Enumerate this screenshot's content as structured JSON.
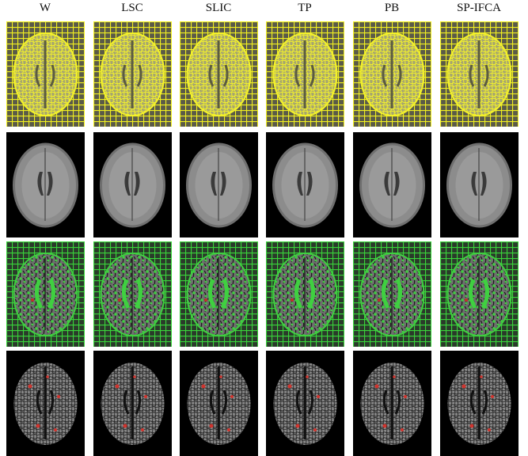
{
  "columns": [
    "W",
    "LSC",
    "SLIC",
    "TP",
    "PB",
    "SP-IFCA"
  ]
}
